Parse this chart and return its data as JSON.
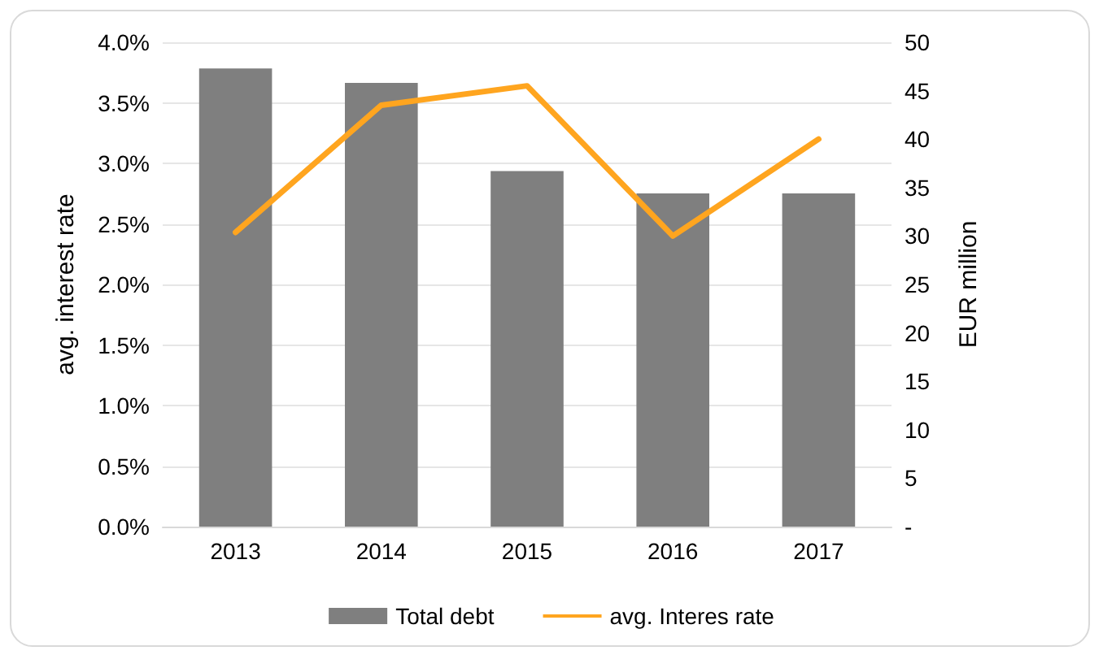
{
  "chart_data": {
    "type": "bar",
    "categories": [
      "2013",
      "2014",
      "2015",
      "2016",
      "2017"
    ],
    "series": [
      {
        "name": "Total debt",
        "axis": "y2",
        "color": "#7f7f7f",
        "values": [
          47.3,
          45.8,
          36.7,
          34.4,
          34.4
        ]
      },
      {
        "name": "avg. Interes rate",
        "type": "line",
        "color": "#ffa51f",
        "values": [
          2.43,
          3.48,
          3.64,
          2.4,
          3.2
        ]
      }
    ],
    "ylabel": "avg. interest rate",
    "y2label": "EUR million",
    "ylim": [
      0,
      4
    ],
    "yticks": [
      {
        "value": 0,
        "label": "0.0%"
      },
      {
        "value": 0.5,
        "label": "0.5%"
      },
      {
        "value": 1,
        "label": "1.0%"
      },
      {
        "value": 1.5,
        "label": "1.5%"
      },
      {
        "value": 2,
        "label": "2.0%"
      },
      {
        "value": 2.5,
        "label": "2.5%"
      },
      {
        "value": 3,
        "label": "3.0%"
      },
      {
        "value": 3.5,
        "label": "3.5%"
      },
      {
        "value": 4,
        "label": "4.0%"
      }
    ],
    "y2lim": [
      0,
      50
    ],
    "y2ticks": [
      {
        "value": 0,
        "label": "-"
      },
      5,
      10,
      15,
      20,
      25,
      30,
      35,
      40,
      45,
      50
    ],
    "grid": "y",
    "legend": "bottom",
    "marker": "none",
    "line_style": "solid"
  }
}
